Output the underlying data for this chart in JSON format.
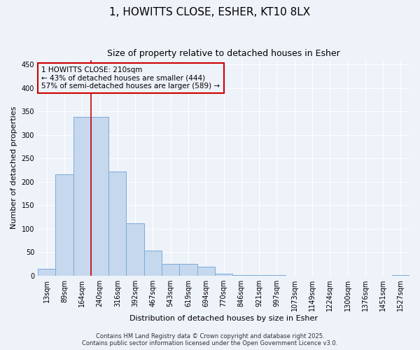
{
  "title": "1, HOWITTS CLOSE, ESHER, KT10 8LX",
  "subtitle": "Size of property relative to detached houses in Esher",
  "xlabel": "Distribution of detached houses by size in Esher",
  "ylabel": "Number of detached properties",
  "bar_labels": [
    "13sqm",
    "89sqm",
    "164sqm",
    "240sqm",
    "316sqm",
    "392sqm",
    "467sqm",
    "543sqm",
    "619sqm",
    "694sqm",
    "770sqm",
    "846sqm",
    "921sqm",
    "997sqm",
    "1073sqm",
    "1149sqm",
    "1224sqm",
    "1300sqm",
    "1376sqm",
    "1451sqm",
    "1527sqm"
  ],
  "bar_values": [
    15,
    216,
    338,
    338,
    222,
    112,
    54,
    26,
    25,
    19,
    5,
    2,
    1,
    1,
    0,
    0,
    0,
    0,
    0,
    0,
    2
  ],
  "bar_color": "#c5d8ed",
  "bar_edge_color": "#7aabda",
  "background_color": "#eef2f9",
  "grid_color": "#ffffff",
  "vline_x": 2.5,
  "vline_color": "#cc0000",
  "annotation_text": "1 HOWITTS CLOSE: 210sqm\n← 43% of detached houses are smaller (444)\n57% of semi-detached houses are larger (589) →",
  "annotation_box_color": "#cc0000",
  "ylim": [
    0,
    460
  ],
  "yticks": [
    0,
    50,
    100,
    150,
    200,
    250,
    300,
    350,
    400,
    450
  ],
  "footer_text": "Contains HM Land Registry data © Crown copyright and database right 2025.\nContains public sector information licensed under the Open Government Licence v3.0.",
  "title_fontsize": 11,
  "subtitle_fontsize": 9,
  "annotation_fontsize": 7.5,
  "tick_fontsize": 7,
  "ylabel_fontsize": 8,
  "xlabel_fontsize": 8,
  "footer_fontsize": 6
}
